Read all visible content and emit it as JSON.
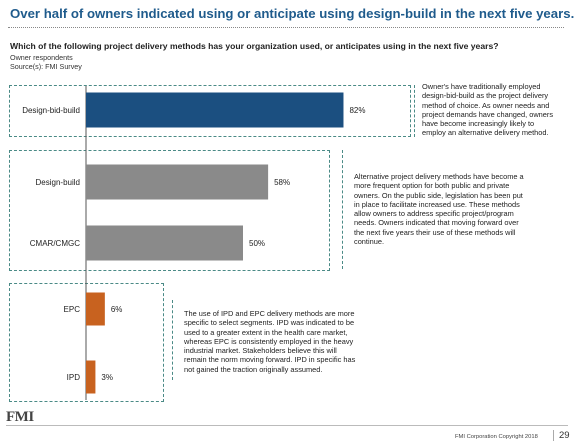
{
  "header": {
    "title": "Over half of owners indicated using or anticipate using design-build in the next five years.",
    "question": "Which of the following project delivery methods has your organization used, or anticipates using in the next five years?",
    "respondents": "Owner respondents",
    "source": "Source(s): FMI Survey"
  },
  "chart_data": {
    "type": "bar",
    "orientation": "horizontal",
    "categories": [
      "Design-bid-build",
      "Design-build",
      "CMAR/CMGC",
      "EPC",
      "IPD"
    ],
    "values": [
      82,
      58,
      50,
      6,
      3
    ],
    "value_labels": [
      "82%",
      "58%",
      "50%",
      "6%",
      "3%"
    ],
    "unit": "%",
    "xlim": [
      0,
      100
    ],
    "colors": [
      "#1b4f80",
      "#8a8a8a",
      "#8a8a8a",
      "#c8621f",
      "#c8621f"
    ],
    "grid": false
  },
  "notes": {
    "group1": [
      "Owner's have traditionally employed",
      "design-bid-build as the project delivery",
      "method of choice. As owner needs and",
      "project demands have changed, owners",
      "have become increasingly likely to",
      "employ an alternative delivery method."
    ],
    "group2": [
      "Alternative project delivery methods have become a",
      "more frequent option for both public and private",
      "owners. On the public side, legislation has been put",
      "in place to facilitate increased use. These methods",
      "allow owners to address specific project/program",
      "needs. Owners indicated that moving forward over",
      "the next five years their use of these methods will",
      "continue."
    ],
    "group3": [
      "The use of IPD and EPC delivery methods are more",
      "specific to select segments. IPD was indicated to be",
      "used to a greater extent in the health care market,",
      "whereas EPC is consistently employed in the heavy",
      "industrial market. Stakeholders believe this will",
      "remain the norm moving forward. IPD in specific has",
      "not gained the traction originally assumed."
    ]
  },
  "footer": {
    "logo": "FMI",
    "copyright": "FMI Corporation Copyright 2018",
    "page_number": "29"
  }
}
